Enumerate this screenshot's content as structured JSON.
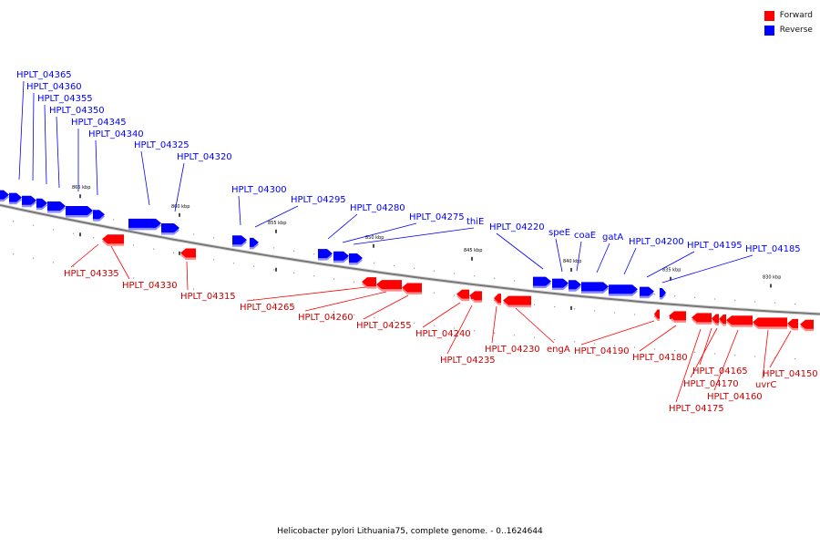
{
  "colors": {
    "forward": "#ff0000",
    "reverse": "#0000ff",
    "backbone": "#777777"
  },
  "legend": {
    "forward": "Forward",
    "reverse": "Reverse"
  },
  "caption": "Helicobacter pylori Lithuania75, complete genome. - 0..1624644",
  "ticks": [
    "865 kbp",
    "860 kbp",
    "855 kbp",
    "850 kbp",
    "845 kbp",
    "840 kbp",
    "835 kbp",
    "830 kbp"
  ],
  "reverse_genes": [
    "HPLT_04365",
    "HPLT_04360",
    "HPLT_04355",
    "HPLT_04350",
    "HPLT_04345",
    "HPLT_04340",
    "HPLT_04325",
    "HPLT_04320",
    "HPLT_04300",
    "HPLT_04295",
    "HPLT_04280",
    "HPLT_04275",
    "thiE",
    "HPLT_04220",
    "speE",
    "coaE",
    "gatA",
    "HPLT_04200",
    "HPLT_04195",
    "HPLT_04185"
  ],
  "forward_genes": [
    "HPLT_04335",
    "HPLT_04330",
    "HPLT_04315",
    "HPLT_04265",
    "HPLT_04260",
    "HPLT_04255",
    "HPLT_04240",
    "HPLT_04235",
    "HPLT_04230",
    "engA",
    "HPLT_04190",
    "HPLT_04180",
    "HPLT_04165",
    "HPLT_04170",
    "HPLT_04175",
    "HPLT_04160",
    "uvrC",
    "HPLT_04150"
  ]
}
